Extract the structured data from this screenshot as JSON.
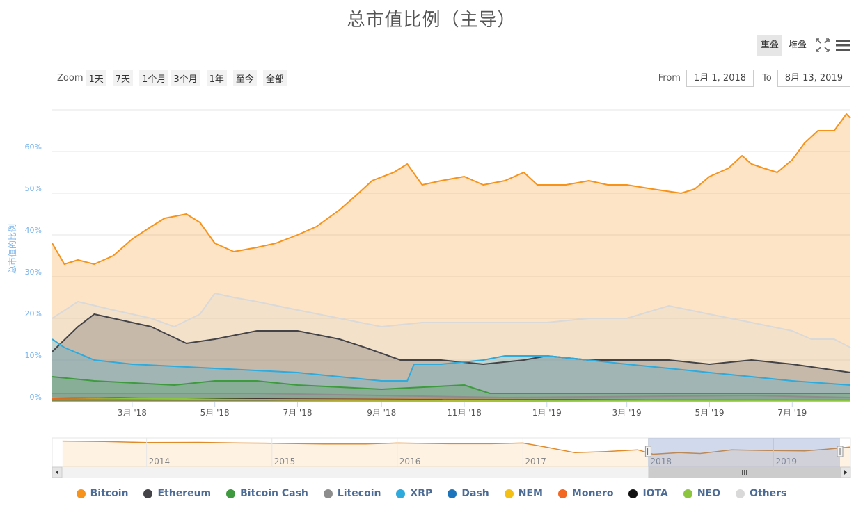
{
  "chart_data": {
    "type": "area",
    "title": "总市值比例（主导）",
    "ylabel": "总市值的比例",
    "ylim": [
      0,
      0.7
    ],
    "y_ticks": [
      "0%",
      "10%",
      "20%",
      "30%",
      "40%",
      "50%",
      "60%"
    ],
    "x_range": [
      "2018-01-01",
      "2019-08-13"
    ],
    "x_ticks": [
      {
        "date": "2018-03-01",
        "label": "3月 '18"
      },
      {
        "date": "2018-05-01",
        "label": "5月 '18"
      },
      {
        "date": "2018-07-01",
        "label": "7月 '18"
      },
      {
        "date": "2018-09-01",
        "label": "9月 '18"
      },
      {
        "date": "2018-11-01",
        "label": "11月 '18"
      },
      {
        "date": "2019-01-01",
        "label": "1月 '19"
      },
      {
        "date": "2019-03-01",
        "label": "3月 '19"
      },
      {
        "date": "2019-05-01",
        "label": "5月 '19"
      },
      {
        "date": "2019-07-01",
        "label": "7月 '19"
      }
    ],
    "grid": true,
    "legend_position": "bottom",
    "series": [
      {
        "name": "Bitcoin",
        "color": "#f7931a",
        "points": [
          [
            "2018-01-01",
            0.38
          ],
          [
            "2018-01-10",
            0.33
          ],
          [
            "2018-01-20",
            0.34
          ],
          [
            "2018-02-01",
            0.33
          ],
          [
            "2018-02-15",
            0.35
          ],
          [
            "2018-03-01",
            0.39
          ],
          [
            "2018-03-15",
            0.42
          ],
          [
            "2018-03-25",
            0.44
          ],
          [
            "2018-04-10",
            0.45
          ],
          [
            "2018-04-20",
            0.43
          ],
          [
            "2018-05-01",
            0.38
          ],
          [
            "2018-05-15",
            0.36
          ],
          [
            "2018-06-01",
            0.37
          ],
          [
            "2018-06-15",
            0.38
          ],
          [
            "2018-07-01",
            0.4
          ],
          [
            "2018-07-15",
            0.42
          ],
          [
            "2018-08-01",
            0.46
          ],
          [
            "2018-08-15",
            0.5
          ],
          [
            "2018-08-25",
            0.53
          ],
          [
            "2018-09-10",
            0.55
          ],
          [
            "2018-09-20",
            0.57
          ],
          [
            "2018-10-01",
            0.52
          ],
          [
            "2018-10-15",
            0.53
          ],
          [
            "2018-11-01",
            0.54
          ],
          [
            "2018-11-15",
            0.52
          ],
          [
            "2018-12-01",
            0.53
          ],
          [
            "2018-12-15",
            0.55
          ],
          [
            "2018-12-25",
            0.52
          ],
          [
            "2019-01-15",
            0.52
          ],
          [
            "2019-02-01",
            0.53
          ],
          [
            "2019-02-15",
            0.52
          ],
          [
            "2019-03-01",
            0.52
          ],
          [
            "2019-03-20",
            0.51
          ],
          [
            "2019-04-10",
            0.5
          ],
          [
            "2019-04-20",
            0.51
          ],
          [
            "2019-05-01",
            0.54
          ],
          [
            "2019-05-15",
            0.56
          ],
          [
            "2019-05-25",
            0.59
          ],
          [
            "2019-06-01",
            0.57
          ],
          [
            "2019-06-10",
            0.56
          ],
          [
            "2019-06-20",
            0.55
          ],
          [
            "2019-07-01",
            0.58
          ],
          [
            "2019-07-10",
            0.62
          ],
          [
            "2019-07-20",
            0.65
          ],
          [
            "2019-08-01",
            0.65
          ],
          [
            "2019-08-10",
            0.69
          ],
          [
            "2019-08-13",
            0.68
          ]
        ]
      },
      {
        "name": "Others",
        "color": "#d9d9d9",
        "points": [
          [
            "2018-01-01",
            0.2
          ],
          [
            "2018-01-20",
            0.24
          ],
          [
            "2018-02-15",
            0.22
          ],
          [
            "2018-03-15",
            0.2
          ],
          [
            "2018-04-01",
            0.18
          ],
          [
            "2018-04-20",
            0.21
          ],
          [
            "2018-05-01",
            0.26
          ],
          [
            "2018-05-15",
            0.25
          ],
          [
            "2018-06-01",
            0.24
          ],
          [
            "2018-07-01",
            0.22
          ],
          [
            "2018-08-01",
            0.2
          ],
          [
            "2018-09-01",
            0.18
          ],
          [
            "2018-10-01",
            0.19
          ],
          [
            "2018-11-01",
            0.19
          ],
          [
            "2018-12-01",
            0.19
          ],
          [
            "2019-01-01",
            0.19
          ],
          [
            "2019-02-01",
            0.2
          ],
          [
            "2019-03-01",
            0.2
          ],
          [
            "2019-04-01",
            0.23
          ],
          [
            "2019-05-01",
            0.21
          ],
          [
            "2019-06-01",
            0.19
          ],
          [
            "2019-07-01",
            0.17
          ],
          [
            "2019-07-15",
            0.15
          ],
          [
            "2019-08-01",
            0.15
          ],
          [
            "2019-08-13",
            0.13
          ]
        ]
      },
      {
        "name": "Ethereum",
        "color": "#434348",
        "points": [
          [
            "2018-01-01",
            0.12
          ],
          [
            "2018-01-20",
            0.18
          ],
          [
            "2018-02-01",
            0.21
          ],
          [
            "2018-02-15",
            0.2
          ],
          [
            "2018-03-15",
            0.18
          ],
          [
            "2018-04-10",
            0.14
          ],
          [
            "2018-05-01",
            0.15
          ],
          [
            "2018-06-01",
            0.17
          ],
          [
            "2018-07-01",
            0.17
          ],
          [
            "2018-08-01",
            0.15
          ],
          [
            "2018-08-20",
            0.13
          ],
          [
            "2018-09-15",
            0.1
          ],
          [
            "2018-10-15",
            0.1
          ],
          [
            "2018-11-15",
            0.09
          ],
          [
            "2018-12-15",
            0.1
          ],
          [
            "2019-01-01",
            0.11
          ],
          [
            "2019-02-01",
            0.1
          ],
          [
            "2019-03-01",
            0.1
          ],
          [
            "2019-04-01",
            0.1
          ],
          [
            "2019-05-01",
            0.09
          ],
          [
            "2019-06-01",
            0.1
          ],
          [
            "2019-07-01",
            0.09
          ],
          [
            "2019-08-13",
            0.07
          ]
        ]
      },
      {
        "name": "XRP",
        "color": "#2eaadc",
        "points": [
          [
            "2018-01-01",
            0.15
          ],
          [
            "2018-01-10",
            0.13
          ],
          [
            "2018-02-01",
            0.1
          ],
          [
            "2018-03-01",
            0.09
          ],
          [
            "2018-05-01",
            0.08
          ],
          [
            "2018-07-01",
            0.07
          ],
          [
            "2018-09-01",
            0.05
          ],
          [
            "2018-09-20",
            0.05
          ],
          [
            "2018-09-25",
            0.09
          ],
          [
            "2018-10-15",
            0.09
          ],
          [
            "2018-11-15",
            0.1
          ],
          [
            "2018-12-01",
            0.11
          ],
          [
            "2019-01-01",
            0.11
          ],
          [
            "2019-02-01",
            0.1
          ],
          [
            "2019-03-01",
            0.09
          ],
          [
            "2019-04-01",
            0.08
          ],
          [
            "2019-05-01",
            0.07
          ],
          [
            "2019-06-01",
            0.06
          ],
          [
            "2019-07-01",
            0.05
          ],
          [
            "2019-08-13",
            0.04
          ]
        ]
      },
      {
        "name": "Bitcoin Cash",
        "color": "#3f9a3f",
        "points": [
          [
            "2018-01-01",
            0.06
          ],
          [
            "2018-02-01",
            0.05
          ],
          [
            "2018-04-01",
            0.04
          ],
          [
            "2018-05-01",
            0.05
          ],
          [
            "2018-06-01",
            0.05
          ],
          [
            "2018-07-01",
            0.04
          ],
          [
            "2018-09-01",
            0.03
          ],
          [
            "2018-11-01",
            0.04
          ],
          [
            "2018-11-20",
            0.02
          ],
          [
            "2019-01-01",
            0.02
          ],
          [
            "2019-04-01",
            0.02
          ],
          [
            "2019-06-01",
            0.02
          ],
          [
            "2019-08-13",
            0.02
          ]
        ]
      },
      {
        "name": "Litecoin",
        "color": "#8d8d8d",
        "points": [
          [
            "2018-01-01",
            0.02
          ],
          [
            "2018-06-01",
            0.02
          ],
          [
            "2018-12-01",
            0.01
          ],
          [
            "2019-06-01",
            0.015
          ],
          [
            "2019-08-13",
            0.01
          ]
        ]
      },
      {
        "name": "Dash",
        "color": "#1c75bc",
        "points": [
          [
            "2018-01-01",
            0.01
          ],
          [
            "2018-08-01",
            0.005
          ],
          [
            "2019-08-13",
            0.003
          ]
        ]
      },
      {
        "name": "NEM",
        "color": "#f3c013",
        "points": [
          [
            "2018-01-01",
            0.008
          ],
          [
            "2018-08-01",
            0.004
          ],
          [
            "2019-08-13",
            0.002
          ]
        ]
      },
      {
        "name": "Monero",
        "color": "#f26822",
        "points": [
          [
            "2018-01-01",
            0.007
          ],
          [
            "2018-08-01",
            0.006
          ],
          [
            "2019-08-13",
            0.004
          ]
        ]
      },
      {
        "name": "IOTA",
        "color": "#111111",
        "points": [
          [
            "2018-01-01",
            0.01
          ],
          [
            "2018-06-01",
            0.006
          ],
          [
            "2019-08-13",
            0.002
          ]
        ]
      },
      {
        "name": "NEO",
        "color": "#8cc63f",
        "points": [
          [
            "2018-01-01",
            0.01
          ],
          [
            "2018-06-01",
            0.005
          ],
          [
            "2019-08-13",
            0.002
          ]
        ]
      }
    ]
  },
  "navigator": {
    "years": [
      "2014",
      "2015",
      "2016",
      "2017",
      "2018",
      "2019"
    ],
    "bitcoin_points": [
      [
        "2013-05-01",
        0.95
      ],
      [
        "2013-09-01",
        0.93
      ],
      [
        "2014-01-01",
        0.88
      ],
      [
        "2014-06-01",
        0.89
      ],
      [
        "2014-10-01",
        0.86
      ],
      [
        "2015-01-01",
        0.85
      ],
      [
        "2015-06-01",
        0.82
      ],
      [
        "2015-10-01",
        0.82
      ],
      [
        "2016-01-01",
        0.86
      ],
      [
        "2016-06-01",
        0.83
      ],
      [
        "2016-10-01",
        0.83
      ],
      [
        "2017-01-01",
        0.86
      ],
      [
        "2017-03-01",
        0.7
      ],
      [
        "2017-06-01",
        0.42
      ],
      [
        "2017-09-01",
        0.47
      ],
      [
        "2017-12-01",
        0.55
      ],
      [
        "2018-01-15",
        0.35
      ],
      [
        "2018-04-01",
        0.42
      ],
      [
        "2018-06-01",
        0.38
      ],
      [
        "2018-09-01",
        0.55
      ],
      [
        "2018-12-01",
        0.52
      ],
      [
        "2019-04-01",
        0.5
      ],
      [
        "2019-06-01",
        0.57
      ],
      [
        "2019-08-13",
        0.68
      ]
    ],
    "selected_range": [
      "2018-01-01",
      "2019-08-13"
    ]
  },
  "controls": {
    "mode_overlap": "重叠",
    "mode_stacked": "堆叠",
    "zoom_label": "Zoom",
    "zoom_buttons": [
      "1天",
      "7天",
      "1个月",
      "3个月",
      "1年",
      "至今",
      "全部"
    ],
    "from_label": "From",
    "from_value": "1月 1, 2018",
    "to_label": "To",
    "to_value": "8月 13, 2019"
  },
  "icons": {
    "fullscreen": "expand-arrows-icon",
    "menu": "hamburger-menu-icon"
  },
  "legend_order": [
    "Bitcoin",
    "Ethereum",
    "Bitcoin Cash",
    "Litecoin",
    "XRP",
    "Dash",
    "NEM",
    "Monero",
    "IOTA",
    "NEO",
    "Others"
  ]
}
